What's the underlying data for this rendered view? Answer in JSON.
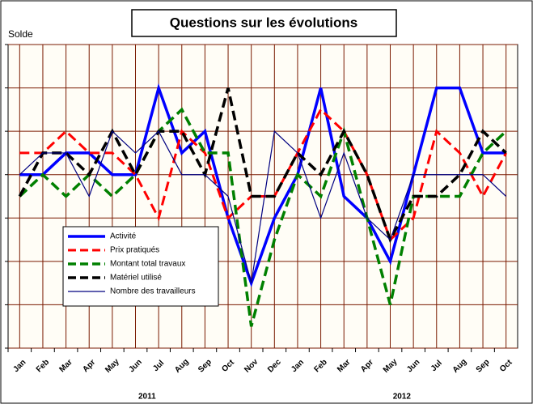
{
  "chart_data": {
    "type": "line",
    "title": "Questions sur les évolutions",
    "y_label": "Solde",
    "categories": [
      "Jan",
      "Feb",
      "Mar",
      "Apr",
      "May",
      "Jun",
      "Jul",
      "Aug",
      "Sep",
      "Oct",
      "Nov",
      "Dec",
      "Jan",
      "Feb",
      "Mar",
      "Apr",
      "May",
      "Jun",
      "Jul",
      "Aug",
      "Sep",
      "Oct"
    ],
    "year_labels": [
      "2011",
      "2012"
    ],
    "ylim": [
      -40,
      30
    ],
    "yticks": [
      -40,
      -30,
      -20,
      -10,
      0,
      10,
      20,
      30
    ],
    "grid": true,
    "legend": "lower left",
    "series": [
      {
        "name": "Activité",
        "color": "#0000ff",
        "width": 3.5,
        "dashed": false,
        "values": [
          0,
          0,
          5,
          5,
          0,
          0,
          20,
          5,
          10,
          -10,
          -25,
          -10,
          0,
          20,
          -5,
          -10,
          -20,
          0,
          20,
          20,
          5,
          5
        ]
      },
      {
        "name": "Prix pratiqués",
        "color": "#ff0000",
        "width": 3,
        "dashed": true,
        "values": [
          5,
          5,
          10,
          5,
          5,
          0,
          -10,
          10,
          5,
          -10,
          -5,
          -5,
          5,
          15,
          10,
          0,
          -15,
          -10,
          10,
          5,
          -5,
          5
        ]
      },
      {
        "name": "Montant total travaux",
        "color": "#008000",
        "width": 3.5,
        "dashed": true,
        "values": [
          -5,
          0,
          -5,
          0,
          -5,
          0,
          10,
          15,
          5,
          5,
          -35,
          -15,
          0,
          -5,
          10,
          -10,
          -30,
          -5,
          -5,
          -5,
          5,
          10
        ]
      },
      {
        "name": "Matériel utilisé",
        "color": "#000000",
        "width": 3.5,
        "dashed": true,
        "values": [
          -5,
          5,
          5,
          0,
          10,
          0,
          10,
          10,
          0,
          20,
          -5,
          -5,
          5,
          0,
          10,
          0,
          -15,
          -5,
          -5,
          0,
          10,
          5
        ]
      },
      {
        "name": "Nombre des travailleurs",
        "color": "#000080",
        "width": 1.2,
        "dashed": false,
        "values": [
          0,
          5,
          5,
          -5,
          10,
          5,
          10,
          0,
          0,
          -5,
          -25,
          10,
          5,
          -10,
          5,
          -10,
          -15,
          0,
          0,
          0,
          0,
          -5
        ]
      }
    ]
  }
}
